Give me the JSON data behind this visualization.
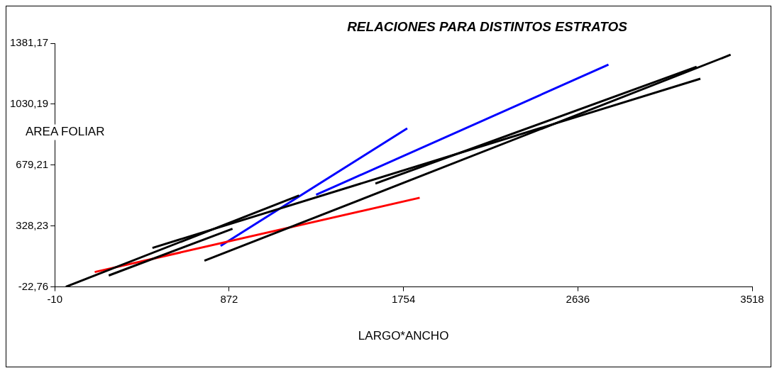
{
  "chart_data": {
    "type": "line",
    "title": "RELACIONES PARA DISTINTOS ESTRATOS",
    "xlabel": "LARGO*ANCHO",
    "ylabel": "AREA FOLIAR",
    "xlim": [
      -10,
      3518
    ],
    "xticks": [
      -10,
      872,
      1754,
      2636,
      3518
    ],
    "ylim": [
      -22.76,
      1381.17
    ],
    "yticks": [
      {
        "value": -22.76,
        "label": "-22,76"
      },
      {
        "value": 328.23,
        "label": "328,23"
      },
      {
        "value": 679.21,
        "label": "679,21"
      },
      {
        "value": 1030.19,
        "label": "1030,19"
      },
      {
        "value": 1381.17,
        "label": "1381,17"
      }
    ],
    "grid": false,
    "legend": false,
    "marker": "none",
    "line_style": "solid",
    "series": [
      {
        "color": "#000000",
        "x": [
          46,
          1226
        ],
        "values": [
          -22,
          504
        ]
      },
      {
        "color": "#000000",
        "x": [
          263,
          889
        ],
        "values": [
          43,
          312
        ]
      },
      {
        "color": "#000000",
        "x": [
          484,
          3256
        ],
        "values": [
          202,
          1177
        ]
      },
      {
        "color": "#000000",
        "x": [
          747,
          3409
        ],
        "values": [
          128,
          1315
        ]
      },
      {
        "color": "#000000",
        "x": [
          1612,
          3237
        ],
        "values": [
          573,
          1246
        ]
      },
      {
        "color": "#ff0000",
        "x": [
          192,
          1836
        ],
        "values": [
          63,
          491
        ]
      },
      {
        "color": "#0000ff",
        "x": [
          829,
          1773
        ],
        "values": [
          214,
          891
        ]
      },
      {
        "color": "#0000ff",
        "x": [
          1312,
          2791
        ],
        "values": [
          508,
          1258
        ]
      }
    ]
  }
}
